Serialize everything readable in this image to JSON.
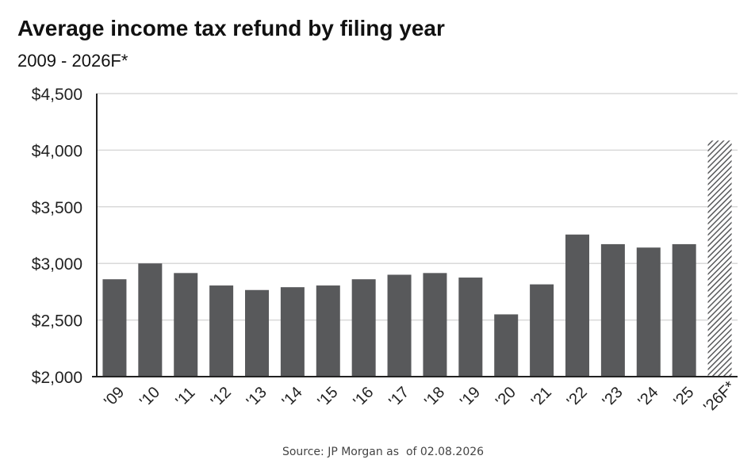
{
  "chart_data": {
    "type": "bar",
    "title": "Average income tax refund by filing year",
    "subtitle": "2009 - 2026F*",
    "categories": [
      "'09",
      "'10",
      "'11",
      "'12",
      "'13",
      "'14",
      "'15",
      "'16",
      "'17",
      "'18",
      "'19",
      "'20",
      "'21",
      "'22",
      "'23",
      "'24",
      "'25",
      "'26F*"
    ],
    "values": [
      2860,
      3000,
      2915,
      2805,
      2765,
      2790,
      2805,
      2860,
      2900,
      2915,
      2875,
      2550,
      2815,
      3255,
      3170,
      3140,
      3170,
      4085
    ],
    "forecast_index": 17,
    "ylim": [
      2000,
      4500
    ],
    "yticks": [
      2000,
      2500,
      3000,
      3500,
      4000,
      4500
    ],
    "ytick_labels": [
      "$2,000",
      "$2,500",
      "$3,000",
      "$3,500",
      "$4,000",
      "$4,500"
    ],
    "xlabel": "",
    "ylabel": "",
    "grid": true,
    "bar_color": "#58595b",
    "grid_color": "#d9d9d9"
  },
  "source": "Source: JP Morgan as  of 02.08.2026"
}
